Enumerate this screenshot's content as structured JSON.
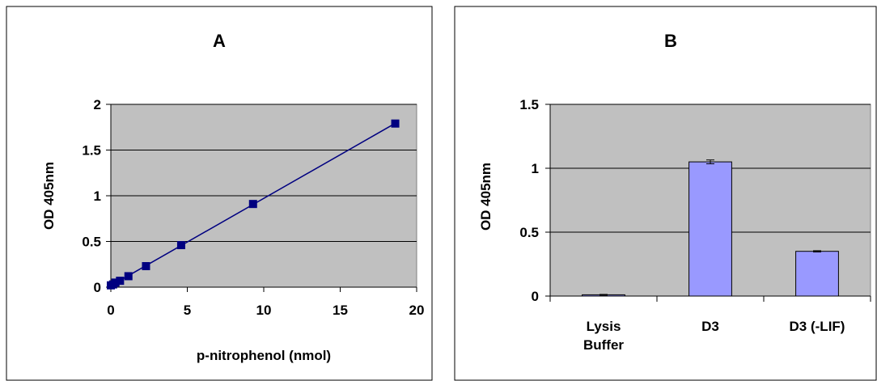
{
  "chart_data": [
    {
      "type": "scatter",
      "title": "A",
      "xlabel": "p-nitrophenol (nmol)",
      "ylabel": "OD 405nm",
      "xlim": [
        0,
        20
      ],
      "ylim": [
        0,
        2
      ],
      "x_ticks": [
        "0",
        "5",
        "10",
        "15",
        "20"
      ],
      "y_ticks": [
        "0",
        "0.5",
        "1",
        "1.5",
        "2"
      ],
      "grid": true,
      "fit_line": true,
      "series": [
        {
          "x": [
            0,
            0.15,
            0.3,
            0.6,
            1.15,
            2.3,
            4.6,
            9.3,
            18.6
          ],
          "y": [
            0.02,
            0.03,
            0.05,
            0.07,
            0.12,
            0.23,
            0.46,
            0.91,
            1.79
          ],
          "color": "#000080"
        }
      ],
      "plot_bg": "#c0c0c0"
    },
    {
      "type": "bar",
      "title": "B",
      "xlabel": "",
      "ylabel": "OD 405nm",
      "ylim": [
        0,
        1.5
      ],
      "y_ticks": [
        "0",
        "0.5",
        "1",
        "1.5"
      ],
      "grid": true,
      "categories": [
        [
          "Lysis",
          "Buffer"
        ],
        [
          "D3"
        ],
        [
          "D3 (-LIF)"
        ]
      ],
      "values": [
        0.01,
        1.05,
        0.35
      ],
      "errors": [
        0.003,
        0.015,
        0.005
      ],
      "bar_color": "#9999ff",
      "plot_bg": "#c0c0c0"
    }
  ]
}
